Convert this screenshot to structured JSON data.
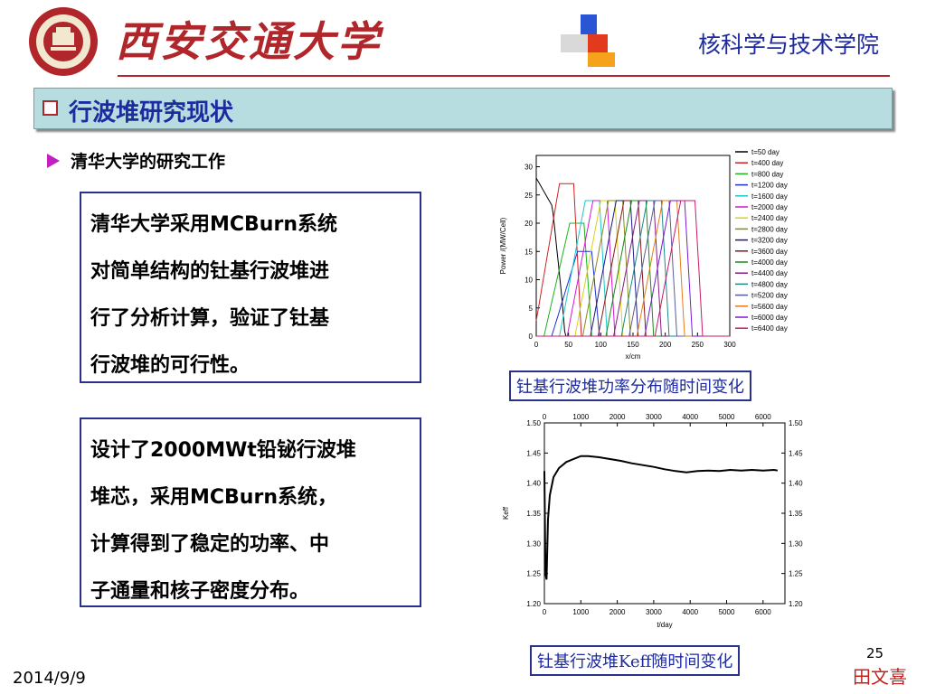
{
  "header": {
    "university": "西安交通大学",
    "college": "核科学与技术学院"
  },
  "banner": {
    "title": "行波堆研究现状"
  },
  "subheading": "清华大学的研究工作",
  "textbox1": {
    "lines": [
      "清华大学采用MCBurn系统",
      "对简单结构的钍基行波堆进",
      "行了分析计算，验证了钍基",
      "行波堆的可行性。"
    ]
  },
  "textbox2": {
    "lines": [
      "设计了2000MWt铅铋行波堆",
      "堆芯，采用MCBurn系统，",
      "计算得到了稳定的功率、中",
      "子通量和核子密度分布。"
    ]
  },
  "caption1": "钍基行波堆功率分布随时间变化",
  "caption2": "钍基行波堆Keff随时间变化",
  "footer": {
    "page": "25",
    "author": "田文喜",
    "date": "2014/9/9"
  },
  "chart_data": [
    {
      "type": "line",
      "xlabel": "x/cm",
      "ylabel": "Power /(MW/Cell)",
      "xlim": [
        0,
        300
      ],
      "ylim": [
        0,
        32
      ],
      "xticks": [
        0,
        50,
        100,
        150,
        200,
        250,
        300
      ],
      "yticks": [
        0,
        5,
        10,
        15,
        20,
        25,
        30
      ],
      "legend_position": "top-right",
      "series": [
        {
          "name": "t=50 day",
          "color": "#000000"
        },
        {
          "name": "t=400 day",
          "color": "#d41f1f"
        },
        {
          "name": "t=800 day",
          "color": "#19b319"
        },
        {
          "name": "t=1200 day",
          "color": "#1f2fd4"
        },
        {
          "name": "t=1600 day",
          "color": "#19c8c8"
        },
        {
          "name": "t=2000 day",
          "color": "#d419d4"
        },
        {
          "name": "t=2400 day",
          "color": "#d4d419"
        },
        {
          "name": "t=2800 day",
          "color": "#8a8a19"
        },
        {
          "name": "t=3200 day",
          "color": "#19198a"
        },
        {
          "name": "t=3600 day",
          "color": "#8a1919"
        },
        {
          "name": "t=4000 day",
          "color": "#198a19"
        },
        {
          "name": "t=4400 day",
          "color": "#8a198a"
        },
        {
          "name": "t=4800 day",
          "color": "#198a8a"
        },
        {
          "name": "t=5200 day",
          "color": "#5a5aa0"
        },
        {
          "name": "t=5600 day",
          "color": "#e87b1a"
        },
        {
          "name": "t=6000 day",
          "color": "#7a1ad4"
        },
        {
          "name": "t=6400 day",
          "color": "#c81a6a"
        }
      ],
      "peak_centers": [
        10,
        36,
        52,
        64,
        76,
        88,
        100,
        112,
        124,
        136,
        148,
        160,
        172,
        184,
        196,
        208,
        224
      ],
      "peak_heights": [
        28,
        27,
        20,
        15,
        24,
        24,
        24,
        24,
        24,
        24,
        24,
        24,
        24,
        24,
        24,
        24,
        24
      ]
    },
    {
      "type": "line",
      "xlabel": "t/day",
      "ylabel": "Keff",
      "xlim": [
        0,
        6600
      ],
      "ylim": [
        1.2,
        1.5
      ],
      "xticks": [
        0,
        1000,
        2000,
        3000,
        4000,
        5000,
        6000
      ],
      "yticks": [
        1.2,
        1.25,
        1.3,
        1.35,
        1.4,
        1.45,
        1.5
      ],
      "x": [
        0,
        30,
        60,
        100,
        150,
        250,
        400,
        600,
        800,
        1000,
        1200,
        1500,
        1800,
        2100,
        2400,
        2700,
        3000,
        3300,
        3600,
        3900,
        4200,
        4500,
        4800,
        5100,
        5400,
        5700,
        6000,
        6300,
        6400
      ],
      "y": [
        1.42,
        1.25,
        1.24,
        1.34,
        1.38,
        1.41,
        1.425,
        1.435,
        1.44,
        1.445,
        1.445,
        1.443,
        1.44,
        1.437,
        1.433,
        1.43,
        1.427,
        1.423,
        1.42,
        1.418,
        1.42,
        1.421,
        1.42,
        1.422,
        1.421,
        1.422,
        1.421,
        1.422,
        1.421
      ]
    }
  ]
}
